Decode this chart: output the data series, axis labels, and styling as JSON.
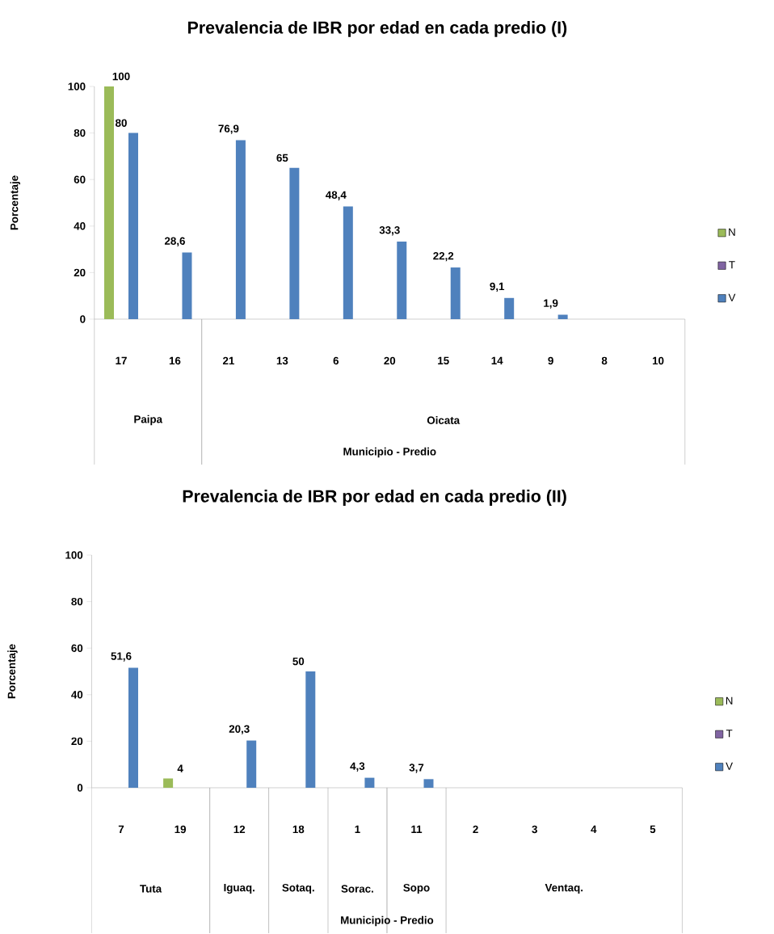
{
  "chart_data": [
    {
      "type": "bar",
      "title": "Prevalencia de IBR por edad en cada predio (I)",
      "xlabel": "Municipio - Predio",
      "ylabel": "Porcentaje",
      "categories": [
        "17",
        "16",
        "21",
        "13",
        "6",
        "20",
        "15",
        "14",
        "9",
        "8",
        "10"
      ],
      "series": [
        {
          "name": "N",
          "color": "#9bbb59",
          "values": [
            100,
            null,
            null,
            null,
            null,
            null,
            null,
            null,
            null,
            null,
            null
          ],
          "value_labels": [
            "100",
            null,
            null,
            null,
            null,
            null,
            null,
            null,
            null,
            null,
            null
          ]
        },
        {
          "name": "T",
          "color": "#8064a2",
          "values": [
            null,
            null,
            null,
            null,
            null,
            null,
            null,
            null,
            null,
            null,
            null
          ]
        },
        {
          "name": "V",
          "color": "#4f81bd",
          "values": [
            80,
            28.6,
            76.9,
            65,
            48.4,
            33.3,
            22.2,
            9.1,
            1.9,
            null,
            null
          ],
          "value_labels": [
            "80",
            "28,6",
            "76,9",
            "65",
            "48,4",
            "33,3",
            "22,2",
            "9,1",
            "1,9",
            null,
            null
          ]
        }
      ],
      "ylim": [
        0,
        100
      ],
      "yticks": [
        0,
        20,
        40,
        60,
        80,
        100
      ],
      "legend": "right",
      "annotations": [
        "Paipa",
        "Oicata"
      ]
    },
    {
      "type": "bar",
      "title": "Prevalencia de IBR por edad en cada predio (II)",
      "xlabel": "Municipio - Predio",
      "ylabel": "Porcentaje",
      "categories": [
        "7",
        "19",
        "12",
        "18",
        "1",
        "11",
        "2",
        "3",
        "4",
        "5"
      ],
      "series": [
        {
          "name": "N",
          "color": "#9bbb59",
          "values": [
            null,
            4,
            null,
            null,
            null,
            null,
            null,
            null,
            null,
            null
          ],
          "value_labels": [
            null,
            "4",
            null,
            null,
            null,
            null,
            null,
            null,
            null,
            null
          ]
        },
        {
          "name": "T",
          "color": "#8064a2",
          "values": [
            null,
            null,
            null,
            null,
            null,
            null,
            null,
            null,
            null,
            null
          ]
        },
        {
          "name": "V",
          "color": "#4f81bd",
          "values": [
            51.6,
            null,
            20.3,
            50,
            4.3,
            3.7,
            null,
            null,
            null,
            null
          ],
          "value_labels": [
            "51,6",
            null,
            "20,3",
            "50",
            "4,3",
            "3,7",
            null,
            null,
            null,
            null
          ]
        }
      ],
      "ylim": [
        0,
        100
      ],
      "yticks": [
        0,
        20,
        40,
        60,
        80,
        100
      ],
      "legend": "right",
      "annotations": [
        "Tuta",
        "Iguaq.",
        "Sotaq.",
        "Sorac.",
        "Sopo",
        "Ventaq."
      ]
    }
  ]
}
